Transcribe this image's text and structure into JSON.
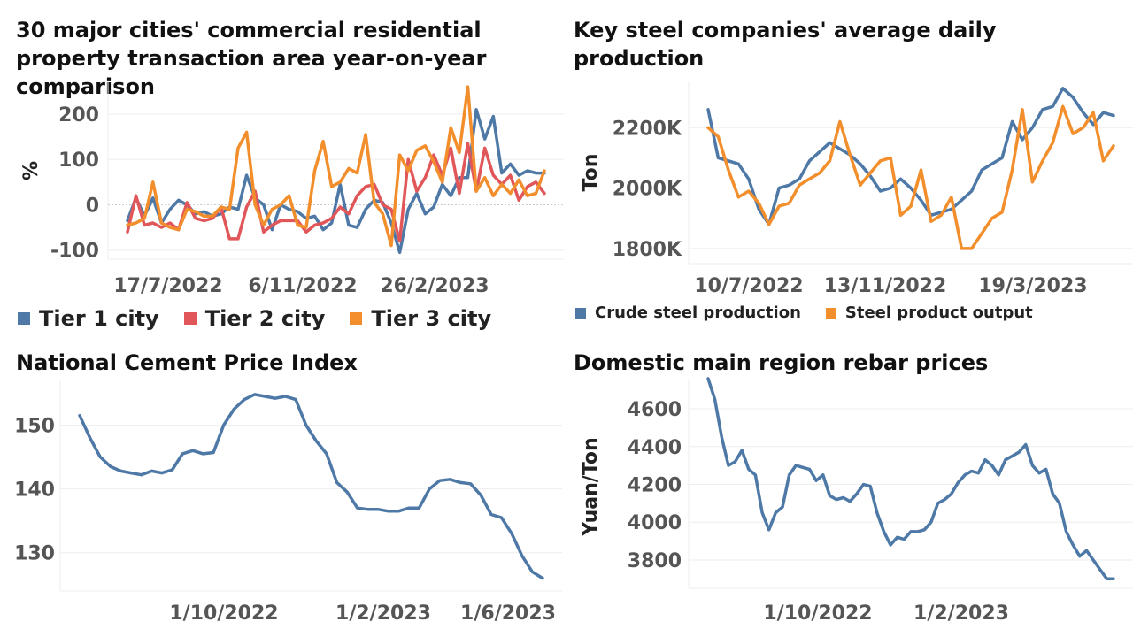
{
  "chart_data": [
    {
      "type": "line",
      "title": "30 major cities' commercial residential property transaction area year-on-year comparison",
      "ylabel": "%",
      "xlabel": "",
      "x_tick_labels": [
        "17/7/2022",
        "6/11/2022",
        "26/2/2023"
      ],
      "y_ticks": [
        200,
        100,
        0,
        -100
      ],
      "ylim": [
        -120,
        270
      ],
      "grid": true,
      "legend_position": "bottom",
      "series": [
        {
          "name": "Tier 1 city",
          "color": "#4e79a7",
          "values": [
            -35,
            15,
            -25,
            15,
            -40,
            -10,
            10,
            0,
            -20,
            -15,
            -25,
            -20,
            -5,
            -10,
            65,
            15,
            0,
            -55,
            0,
            -10,
            -15,
            -30,
            -25,
            -55,
            -40,
            45,
            -45,
            -50,
            -10,
            10,
            5,
            -40,
            -105,
            -10,
            25,
            -20,
            -5,
            45,
            20,
            60,
            60,
            210,
            145,
            195,
            70,
            90,
            65,
            75,
            70,
            70
          ]
        },
        {
          "name": "Tier 2 city",
          "color": "#e15759",
          "values": [
            -60,
            20,
            -45,
            -40,
            -50,
            -40,
            -55,
            5,
            -30,
            -35,
            -30,
            -5,
            -75,
            -75,
            -5,
            30,
            -60,
            -45,
            -35,
            -35,
            -35,
            -60,
            -45,
            -40,
            -30,
            -5,
            -20,
            20,
            40,
            45,
            0,
            -10,
            -80,
            100,
            30,
            60,
            110,
            65,
            125,
            25,
            135,
            30,
            125,
            65,
            45,
            65,
            10,
            40,
            50,
            25
          ]
        },
        {
          "name": "Tier 3 city",
          "color": "#f28e2b",
          "values": [
            -45,
            -40,
            -30,
            50,
            -40,
            -50,
            -55,
            -10,
            -15,
            -25,
            -25,
            -5,
            -10,
            125,
            160,
            0,
            -45,
            -10,
            0,
            20,
            -45,
            -50,
            75,
            140,
            40,
            50,
            80,
            70,
            155,
            5,
            -20,
            -90,
            110,
            75,
            120,
            130,
            95,
            50,
            170,
            115,
            260,
            30,
            60,
            20,
            45,
            25,
            55,
            20,
            25,
            75
          ]
        }
      ]
    },
    {
      "type": "line",
      "title": "Key steel companies' average daily production",
      "ylabel": "Ton",
      "xlabel": "",
      "x_tick_labels": [
        "10/7/2022",
        "13/11/2022",
        "19/3/2023"
      ],
      "y_ticks": [
        "2200K",
        "2000K",
        "1800K"
      ],
      "ylim": [
        1750,
        2350
      ],
      "ylim_units": "K",
      "grid": true,
      "legend_position": "bottom",
      "series": [
        {
          "name": "Crude steel production",
          "color": "#4e79a7",
          "values": [
            2260,
            2100,
            2090,
            2080,
            2030,
            1930,
            1880,
            2000,
            2010,
            2030,
            2090,
            2120,
            2150,
            2130,
            2110,
            2080,
            2040,
            1990,
            2000,
            2030,
            2000,
            1960,
            1910,
            1920,
            1930,
            1960,
            1990,
            2060,
            2080,
            2100,
            2220,
            2160,
            2200,
            2260,
            2270,
            2330,
            2300,
            2250,
            2210,
            2250,
            2240
          ]
        },
        {
          "name": "Steel product output",
          "color": "#f28e2b",
          "values": [
            2200,
            2170,
            2060,
            1970,
            1990,
            1950,
            1880,
            1940,
            1950,
            2010,
            2030,
            2050,
            2090,
            2220,
            2110,
            2010,
            2050,
            2090,
            2100,
            1910,
            1940,
            2060,
            1890,
            1910,
            1970,
            1800,
            1800,
            1850,
            1900,
            1920,
            2060,
            2260,
            2020,
            2090,
            2150,
            2270,
            2180,
            2200,
            2250,
            2090,
            2140
          ]
        }
      ]
    },
    {
      "type": "line",
      "title": "National Cement Price Index",
      "ylabel": "",
      "xlabel": "",
      "x_tick_labels": [
        "1/10/2022",
        "1/2/2023",
        "1/6/2023"
      ],
      "y_ticks": [
        150,
        140,
        130
      ],
      "ylim": [
        124,
        157
      ],
      "grid": true,
      "series": [
        {
          "name": "",
          "color": "#4e79a7",
          "values": [
            151.5,
            148,
            145,
            143.5,
            142.8,
            142.5,
            142.2,
            142.8,
            142.5,
            143,
            145.5,
            146,
            145.5,
            145.7,
            150,
            152.5,
            154,
            154.8,
            154.5,
            154.2,
            154.5,
            154,
            150,
            147.5,
            145.5,
            141,
            139.5,
            137,
            136.8,
            136.8,
            136.5,
            136.5,
            137,
            137,
            140,
            141.3,
            141.5,
            141,
            140.8,
            139,
            136,
            135.5,
            133,
            129.5,
            127,
            126
          ]
        }
      ]
    },
    {
      "type": "line",
      "title": "Domestic main region rebar prices",
      "ylabel": "Yuan/Ton",
      "xlabel": "",
      "x_tick_labels": [
        "1/10/2022",
        "1/2/2023"
      ],
      "y_ticks": [
        4600,
        4400,
        4200,
        4000,
        3800
      ],
      "ylim": [
        3650,
        4750
      ],
      "grid": true,
      "series": [
        {
          "name": "",
          "color": "#4e79a7",
          "values": [
            4760,
            4650,
            4450,
            4300,
            4320,
            4380,
            4280,
            4250,
            4050,
            3960,
            4050,
            4080,
            4250,
            4300,
            4290,
            4280,
            4220,
            4250,
            4140,
            4120,
            4130,
            4110,
            4150,
            4200,
            4190,
            4050,
            3950,
            3880,
            3920,
            3910,
            3950,
            3950,
            3960,
            4000,
            4100,
            4120,
            4150,
            4210,
            4250,
            4270,
            4260,
            4330,
            4300,
            4250,
            4330,
            4350,
            4370,
            4410,
            4300,
            4260,
            4280,
            4150,
            4100,
            3950,
            3880,
            3820,
            3850,
            3800,
            3750,
            3700,
            3700
          ]
        }
      ]
    }
  ]
}
